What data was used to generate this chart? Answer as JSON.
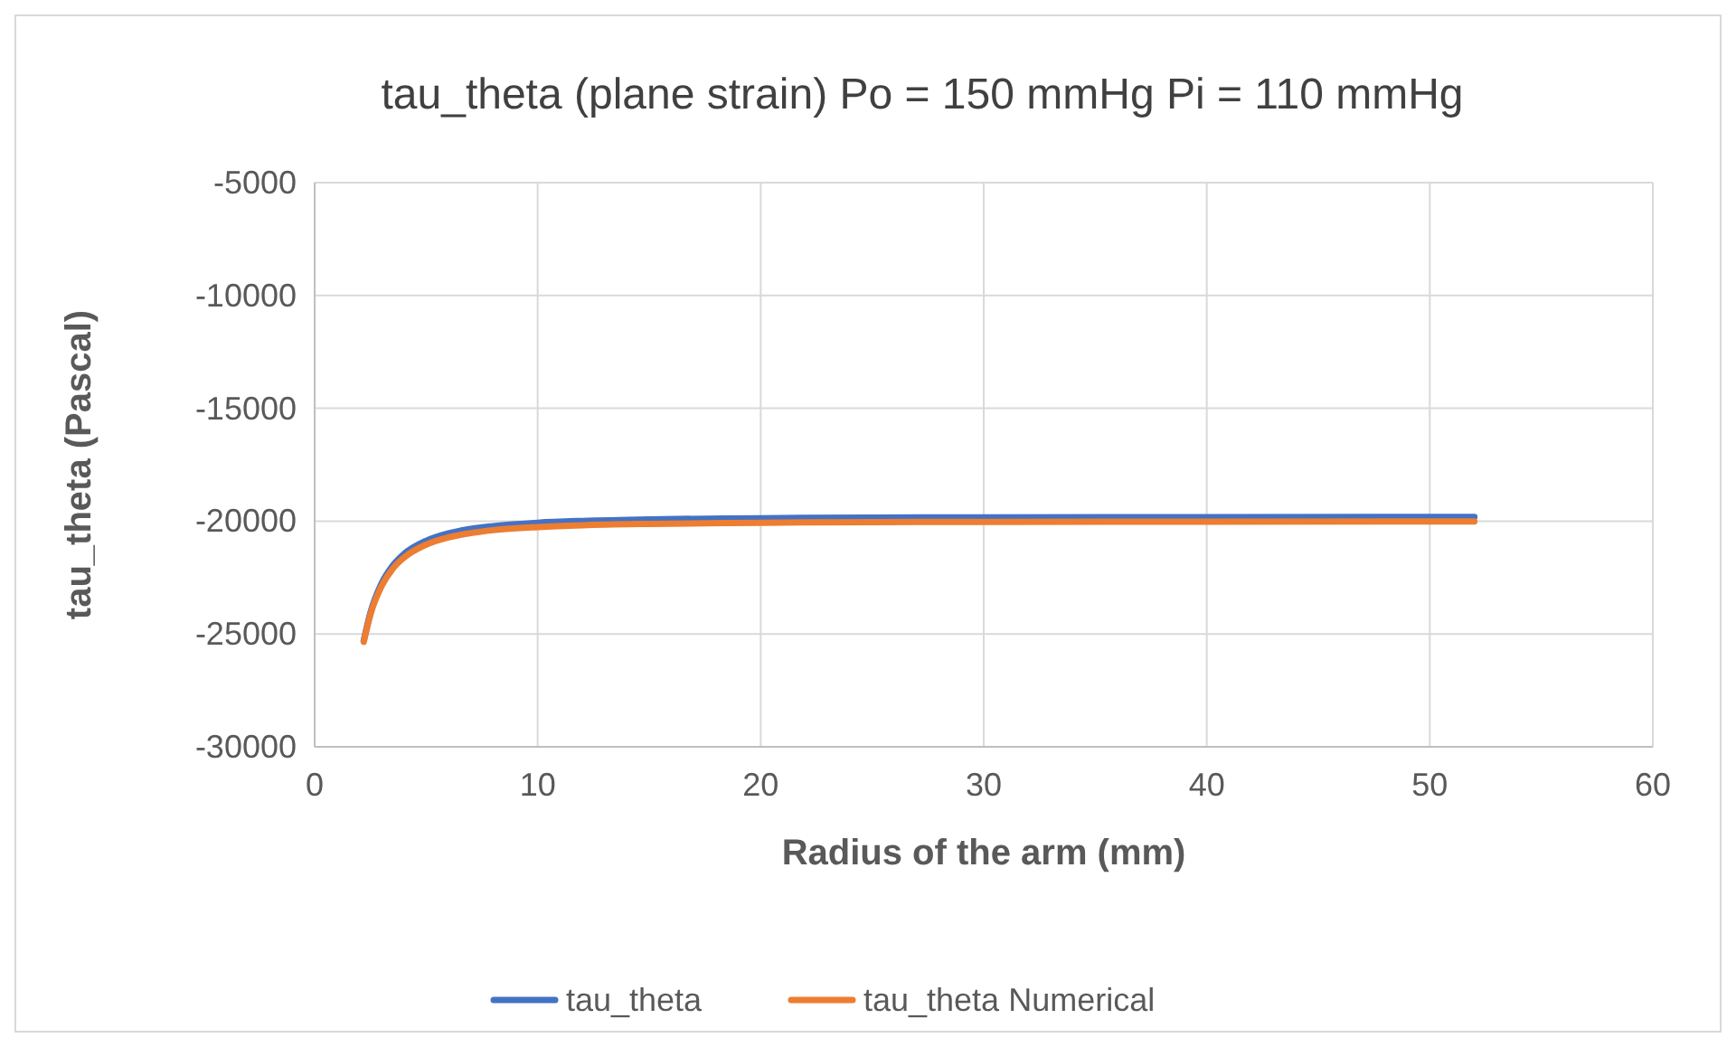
{
  "chart_data": {
    "type": "line",
    "title": "tau_theta (plane strain) Po = 150 mmHg Pi = 110 mmHg",
    "xlabel": "Radius of the arm (mm)",
    "ylabel": "tau_theta (Pascal)",
    "x": [
      2.2,
      2.5,
      3,
      3.5,
      4,
      5,
      6,
      7,
      8,
      10,
      12,
      15,
      20,
      25,
      30,
      40,
      52
    ],
    "series": [
      {
        "name": "tau_theta",
        "color": "#4472c4",
        "values": [
          -25300,
          -24060,
          -22760,
          -21970,
          -21460,
          -20870,
          -20540,
          -20340,
          -20220,
          -20070,
          -19990,
          -19920,
          -19870,
          -19840,
          -19830,
          -19820,
          -19810
        ]
      },
      {
        "name": "tau_theta Numerical",
        "color": "#ed7d31",
        "values": [
          -25350,
          -24140,
          -22880,
          -22110,
          -21620,
          -21040,
          -20720,
          -20530,
          -20400,
          -20260,
          -20180,
          -20120,
          -20070,
          -20040,
          -20030,
          -20020,
          -20010
        ]
      }
    ],
    "xlim": [
      0,
      60
    ],
    "xticks": [
      0,
      10,
      20,
      30,
      40,
      50,
      60
    ],
    "ylim": [
      -30000,
      -5000
    ],
    "yticks": [
      -30000,
      -25000,
      -20000,
      -15000,
      -10000,
      -5000
    ],
    "grid": true,
    "legend": "bottom",
    "marker": "none",
    "line_style": "solid"
  }
}
